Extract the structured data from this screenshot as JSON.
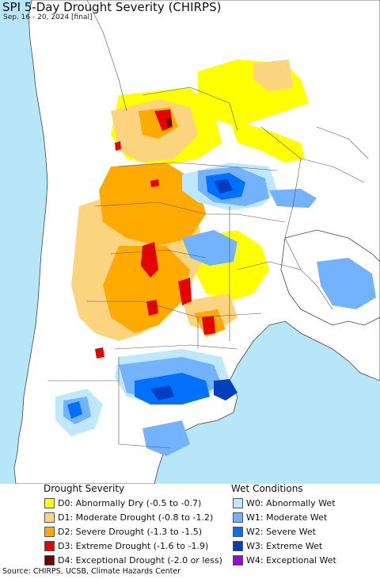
{
  "title": "SPI 5-Day Drought Severity (CHIRPS)",
  "subtitle": "Sep. 16 - 20, 2024 [final]",
  "colors": {
    "ocean": "#b7e6f8",
    "land": "#ffffff",
    "border": "#444444",
    "D0": "#ffff00",
    "D1": "#fcd37f",
    "D2": "#ffaa00",
    "D3": "#e60000",
    "D4": "#730000",
    "W0": "#bee8ff",
    "W1": "#73b2ff",
    "W2": "#0070ff",
    "W3": "#0040c0",
    "W4": "#a000e6"
  },
  "legend": {
    "drought_heading": "Drought Severity",
    "wet_heading": "Wet Conditions",
    "drought": [
      {
        "code": "D0",
        "label": "D0: Abnormally Dry (-0.5 to -0.7)",
        "color": "#ffff00"
      },
      {
        "code": "D1",
        "label": "D1: Moderate Drought (-0.8 to -1.2)",
        "color": "#fcd37f"
      },
      {
        "code": "D2",
        "label": "D2: Severe Drought (-1.3 to -1.5)",
        "color": "#ffaa00"
      },
      {
        "code": "D3",
        "label": "D3: Extreme Drought (-1.6 to -1.9)",
        "color": "#e60000"
      },
      {
        "code": "D4",
        "label": "D4: Exceptional Drought (-2.0 or less)",
        "color": "#730000"
      }
    ],
    "wet": [
      {
        "code": "W0",
        "label": "W0: Abnormally Wet",
        "color": "#bee8ff"
      },
      {
        "code": "W1",
        "label": "W1: Moderate Wet",
        "color": "#73b2ff"
      },
      {
        "code": "W2",
        "label": "W2: Severe Wet",
        "color": "#0070ff"
      },
      {
        "code": "W3",
        "label": "W3: Extreme Wet",
        "color": "#0040c0"
      },
      {
        "code": "W4",
        "label": "W4: Exceptional Wet",
        "color": "#a000e6"
      }
    ]
  },
  "source": "Source: CHIRPS, UCSB, Climate Hazards Center"
}
